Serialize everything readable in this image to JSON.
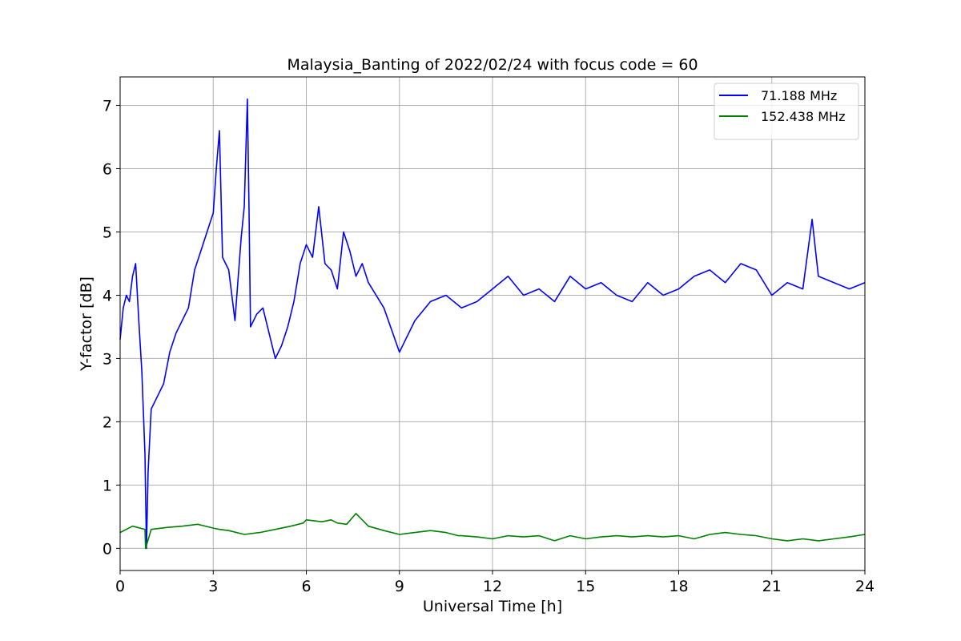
{
  "chart_data": {
    "type": "line",
    "title": "Malaysia_Banting of 2022/02/24 with focus code = 60",
    "xlabel": "Universal Time [h]",
    "ylabel": "Y-factor [dB]",
    "xlim": [
      0,
      24
    ],
    "ylim": [
      -0.35,
      7.45
    ],
    "xticks": [
      0,
      3,
      6,
      9,
      12,
      15,
      18,
      21,
      24
    ],
    "yticks": [
      0,
      1,
      2,
      3,
      4,
      5,
      6,
      7
    ],
    "grid": true,
    "legend_position": "top-right",
    "series": [
      {
        "name": "71.188 MHz",
        "color": "#0000ff",
        "x": [
          0,
          0.1,
          0.2,
          0.3,
          0.4,
          0.5,
          0.6,
          0.7,
          0.8,
          0.85,
          0.9,
          1.0,
          1.2,
          1.4,
          1.6,
          1.8,
          2.0,
          2.2,
          2.4,
          2.6,
          2.8,
          3.0,
          3.1,
          3.2,
          3.3,
          3.5,
          3.7,
          3.9,
          4.0,
          4.1,
          4.15,
          4.2,
          4.4,
          4.6,
          4.8,
          5.0,
          5.2,
          5.4,
          5.6,
          5.8,
          6.0,
          6.2,
          6.4,
          6.6,
          6.8,
          7.0,
          7.2,
          7.4,
          7.6,
          7.8,
          8.0,
          8.5,
          9.0,
          9.2,
          9.5,
          10.0,
          10.5,
          11.0,
          11.5,
          12.0,
          12.5,
          13.0,
          13.5,
          14.0,
          14.5,
          15.0,
          15.5,
          16.0,
          16.5,
          17.0,
          17.5,
          18.0,
          18.5,
          19.0,
          19.5,
          20.0,
          20.5,
          21.0,
          21.5,
          22.0,
          22.3,
          22.5,
          23.0,
          23.5,
          24.0
        ],
        "values": [
          3.3,
          3.8,
          4.0,
          3.9,
          4.3,
          4.5,
          3.6,
          2.8,
          1.5,
          0.0,
          1.2,
          2.2,
          2.4,
          2.6,
          3.1,
          3.4,
          3.6,
          3.8,
          4.4,
          4.7,
          5.0,
          5.3,
          6.0,
          6.6,
          4.6,
          4.4,
          3.6,
          4.9,
          5.4,
          7.1,
          5.5,
          3.5,
          3.7,
          3.8,
          3.4,
          3.0,
          3.2,
          3.5,
          3.9,
          4.5,
          4.8,
          4.6,
          5.4,
          4.5,
          4.4,
          4.1,
          5.0,
          4.7,
          4.3,
          4.5,
          4.2,
          3.8,
          3.1,
          3.3,
          3.6,
          3.9,
          4.0,
          3.8,
          3.9,
          4.1,
          4.3,
          4.0,
          4.1,
          3.9,
          4.3,
          4.1,
          4.2,
          4.0,
          3.9,
          4.2,
          4.0,
          4.1,
          4.3,
          4.4,
          4.2,
          4.5,
          4.4,
          4.0,
          4.2,
          4.1,
          5.2,
          4.3,
          4.2,
          4.1,
          4.2
        ]
      },
      {
        "name": "152.438 MHz",
        "color": "#008000",
        "x": [
          0,
          0.4,
          0.8,
          0.82,
          1.0,
          1.5,
          2.0,
          2.5,
          3.0,
          3.2,
          3.5,
          4.0,
          4.5,
          5.0,
          5.5,
          5.9,
          6.0,
          6.5,
          6.8,
          7.0,
          7.3,
          7.6,
          8.0,
          8.5,
          9.0,
          9.5,
          10.0,
          10.5,
          10.9,
          11.0,
          11.5,
          12.0,
          12.5,
          13.0,
          13.5,
          14.0,
          14.5,
          15.0,
          15.5,
          16.0,
          16.5,
          17.0,
          17.5,
          18.0,
          18.5,
          19.0,
          19.5,
          20.0,
          20.5,
          21.0,
          21.5,
          22.0,
          22.5,
          23.0,
          23.5,
          24.0
        ],
        "values": [
          0.25,
          0.35,
          0.3,
          0.0,
          0.3,
          0.33,
          0.35,
          0.38,
          0.32,
          0.3,
          0.28,
          0.22,
          0.25,
          0.3,
          0.35,
          0.4,
          0.45,
          0.42,
          0.45,
          0.4,
          0.38,
          0.55,
          0.35,
          0.28,
          0.22,
          0.25,
          0.28,
          0.25,
          0.2,
          0.2,
          0.18,
          0.15,
          0.2,
          0.18,
          0.2,
          0.12,
          0.2,
          0.15,
          0.18,
          0.2,
          0.18,
          0.2,
          0.18,
          0.2,
          0.15,
          0.22,
          0.25,
          0.22,
          0.2,
          0.15,
          0.12,
          0.15,
          0.12,
          0.15,
          0.18,
          0.22
        ]
      }
    ]
  }
}
